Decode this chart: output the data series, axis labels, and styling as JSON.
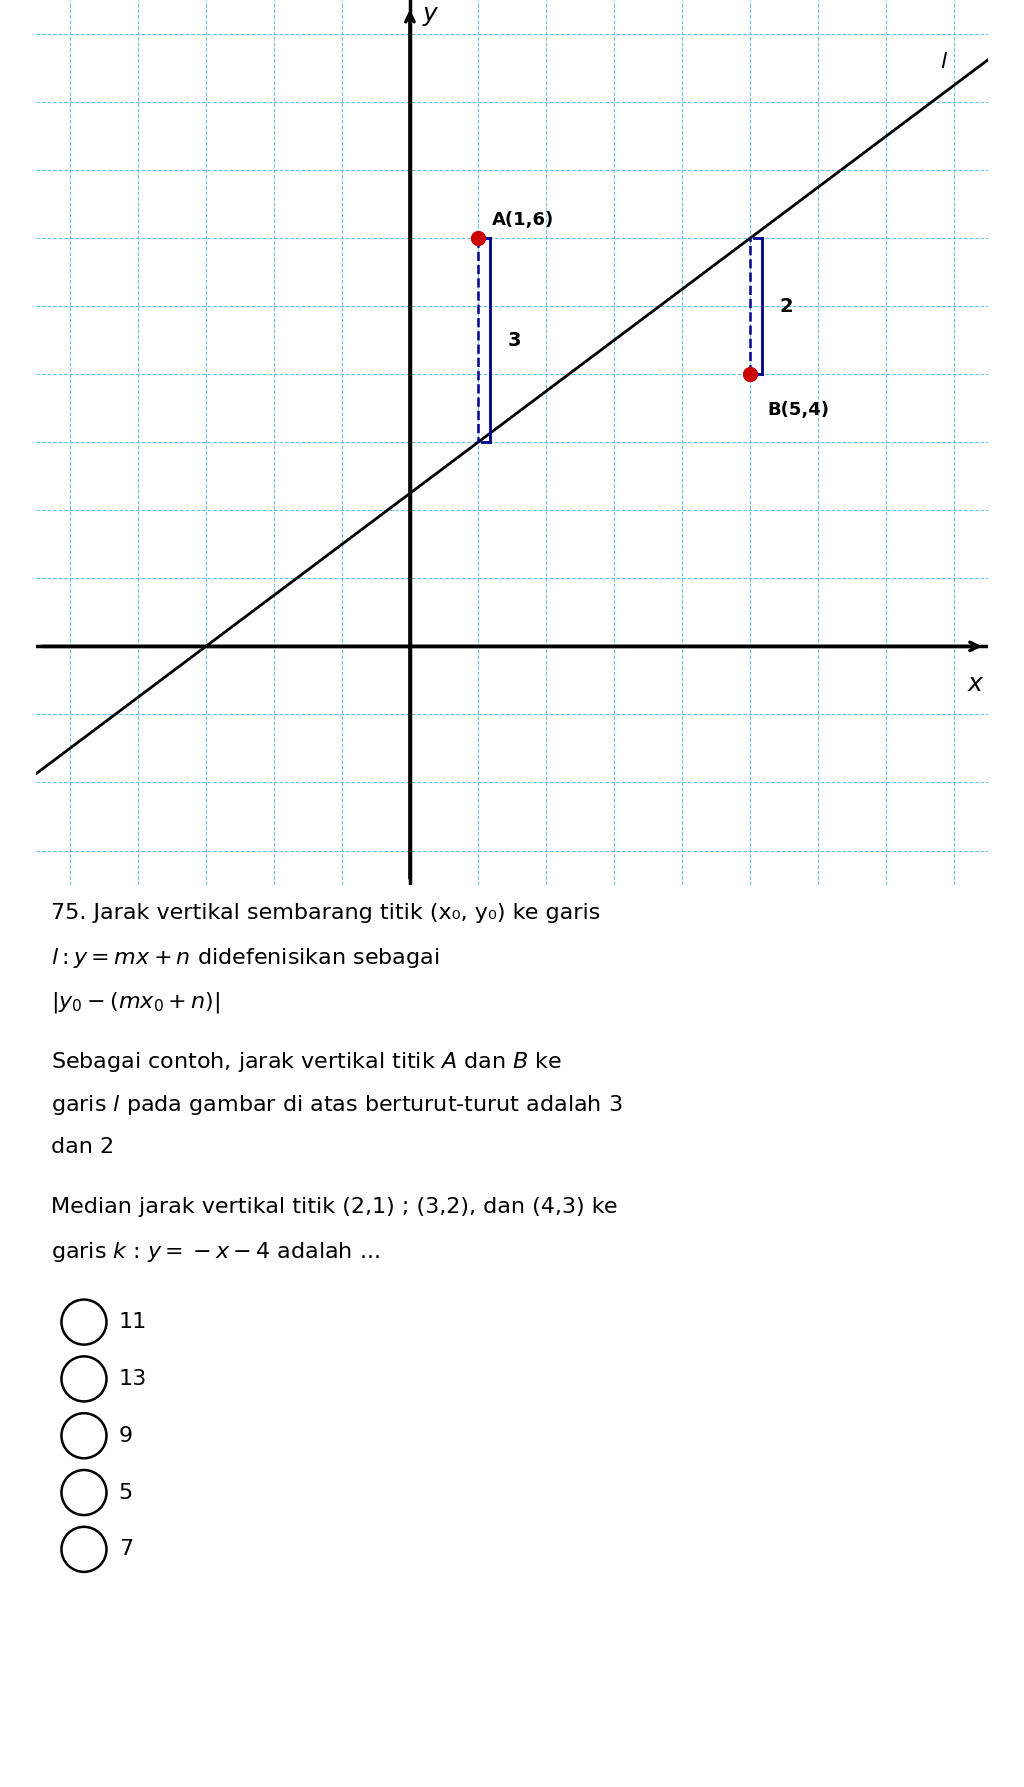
{
  "bg_color": "#ffffff",
  "grid_bg_color": "#daf0f7",
  "grid_color": "#5bbcd6",
  "axis_color": "#000000",
  "line_color": "#000000",
  "brace_color": "#00008B",
  "point_color": "#cc0000",
  "point_A": [
    1,
    6
  ],
  "point_B": [
    5,
    4
  ],
  "line_slope": 0.75,
  "line_intercept": 2.25,
  "line_label": "l",
  "label_A": "A(1,6)",
  "label_B": "B(5,4)",
  "dist_A": "3",
  "dist_B": "2",
  "xlim": [
    -5.5,
    8.5
  ],
  "ylim": [
    -3.5,
    9.5
  ],
  "x_axis_y": 0,
  "y_axis_x": 0,
  "graph_bottom": 0.505,
  "options": [
    "11",
    "13",
    "9",
    "5",
    "7"
  ]
}
